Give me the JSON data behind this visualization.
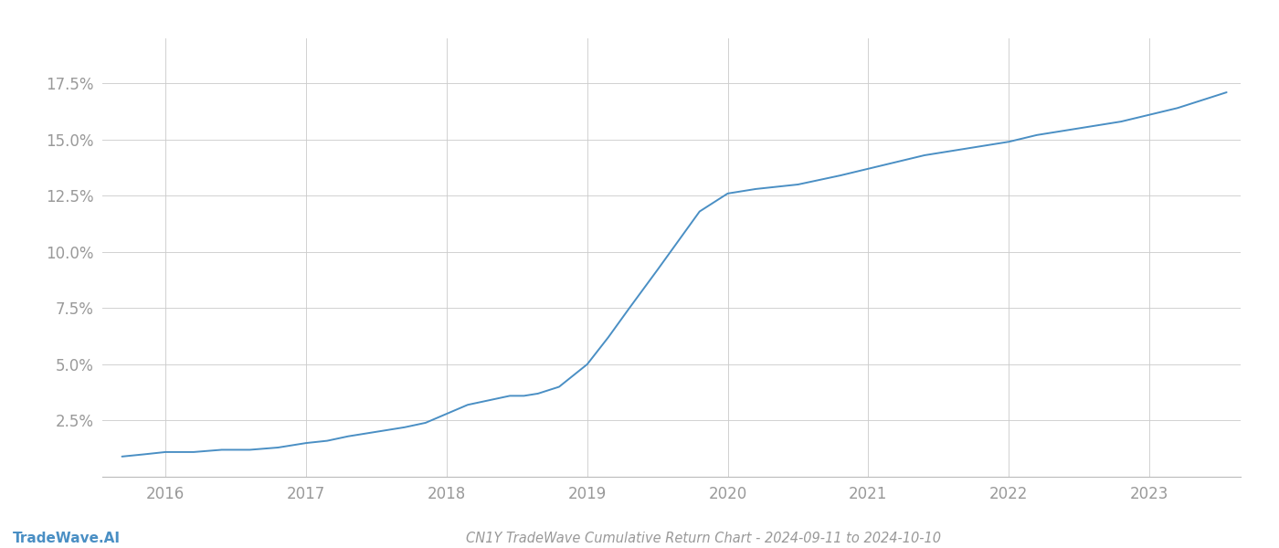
{
  "title": "CN1Y TradeWave Cumulative Return Chart - 2024-09-11 to 2024-10-10",
  "watermark": "TradeWave.AI",
  "line_color": "#4a8fc4",
  "background_color": "#ffffff",
  "grid_color": "#cccccc",
  "text_color": "#999999",
  "x_years": [
    2016,
    2017,
    2018,
    2019,
    2020,
    2021,
    2022,
    2023
  ],
  "y_ticks": [
    0.025,
    0.05,
    0.075,
    0.1,
    0.125,
    0.15,
    0.175
  ],
  "ylim": [
    0.0,
    0.195
  ],
  "xlim": [
    2015.55,
    2023.65
  ],
  "data_x": [
    2015.69,
    2015.85,
    2016.0,
    2016.2,
    2016.4,
    2016.6,
    2016.8,
    2017.0,
    2017.15,
    2017.3,
    2017.5,
    2017.7,
    2017.85,
    2018.0,
    2018.15,
    2018.3,
    2018.45,
    2018.55,
    2018.65,
    2018.8,
    2019.0,
    2019.15,
    2019.3,
    2019.5,
    2019.65,
    2019.8,
    2020.0,
    2020.1,
    2020.2,
    2020.35,
    2020.5,
    2020.65,
    2020.8,
    2021.0,
    2021.2,
    2021.4,
    2021.6,
    2021.8,
    2022.0,
    2022.2,
    2022.4,
    2022.6,
    2022.8,
    2023.0,
    2023.2,
    2023.4,
    2023.55
  ],
  "data_y": [
    0.009,
    0.01,
    0.011,
    0.011,
    0.012,
    0.012,
    0.013,
    0.015,
    0.016,
    0.018,
    0.02,
    0.022,
    0.024,
    0.028,
    0.032,
    0.034,
    0.036,
    0.036,
    0.037,
    0.04,
    0.05,
    0.062,
    0.075,
    0.092,
    0.105,
    0.118,
    0.126,
    0.127,
    0.128,
    0.129,
    0.13,
    0.132,
    0.134,
    0.137,
    0.14,
    0.143,
    0.145,
    0.147,
    0.149,
    0.152,
    0.154,
    0.156,
    0.158,
    0.161,
    0.164,
    0.168,
    0.171
  ]
}
